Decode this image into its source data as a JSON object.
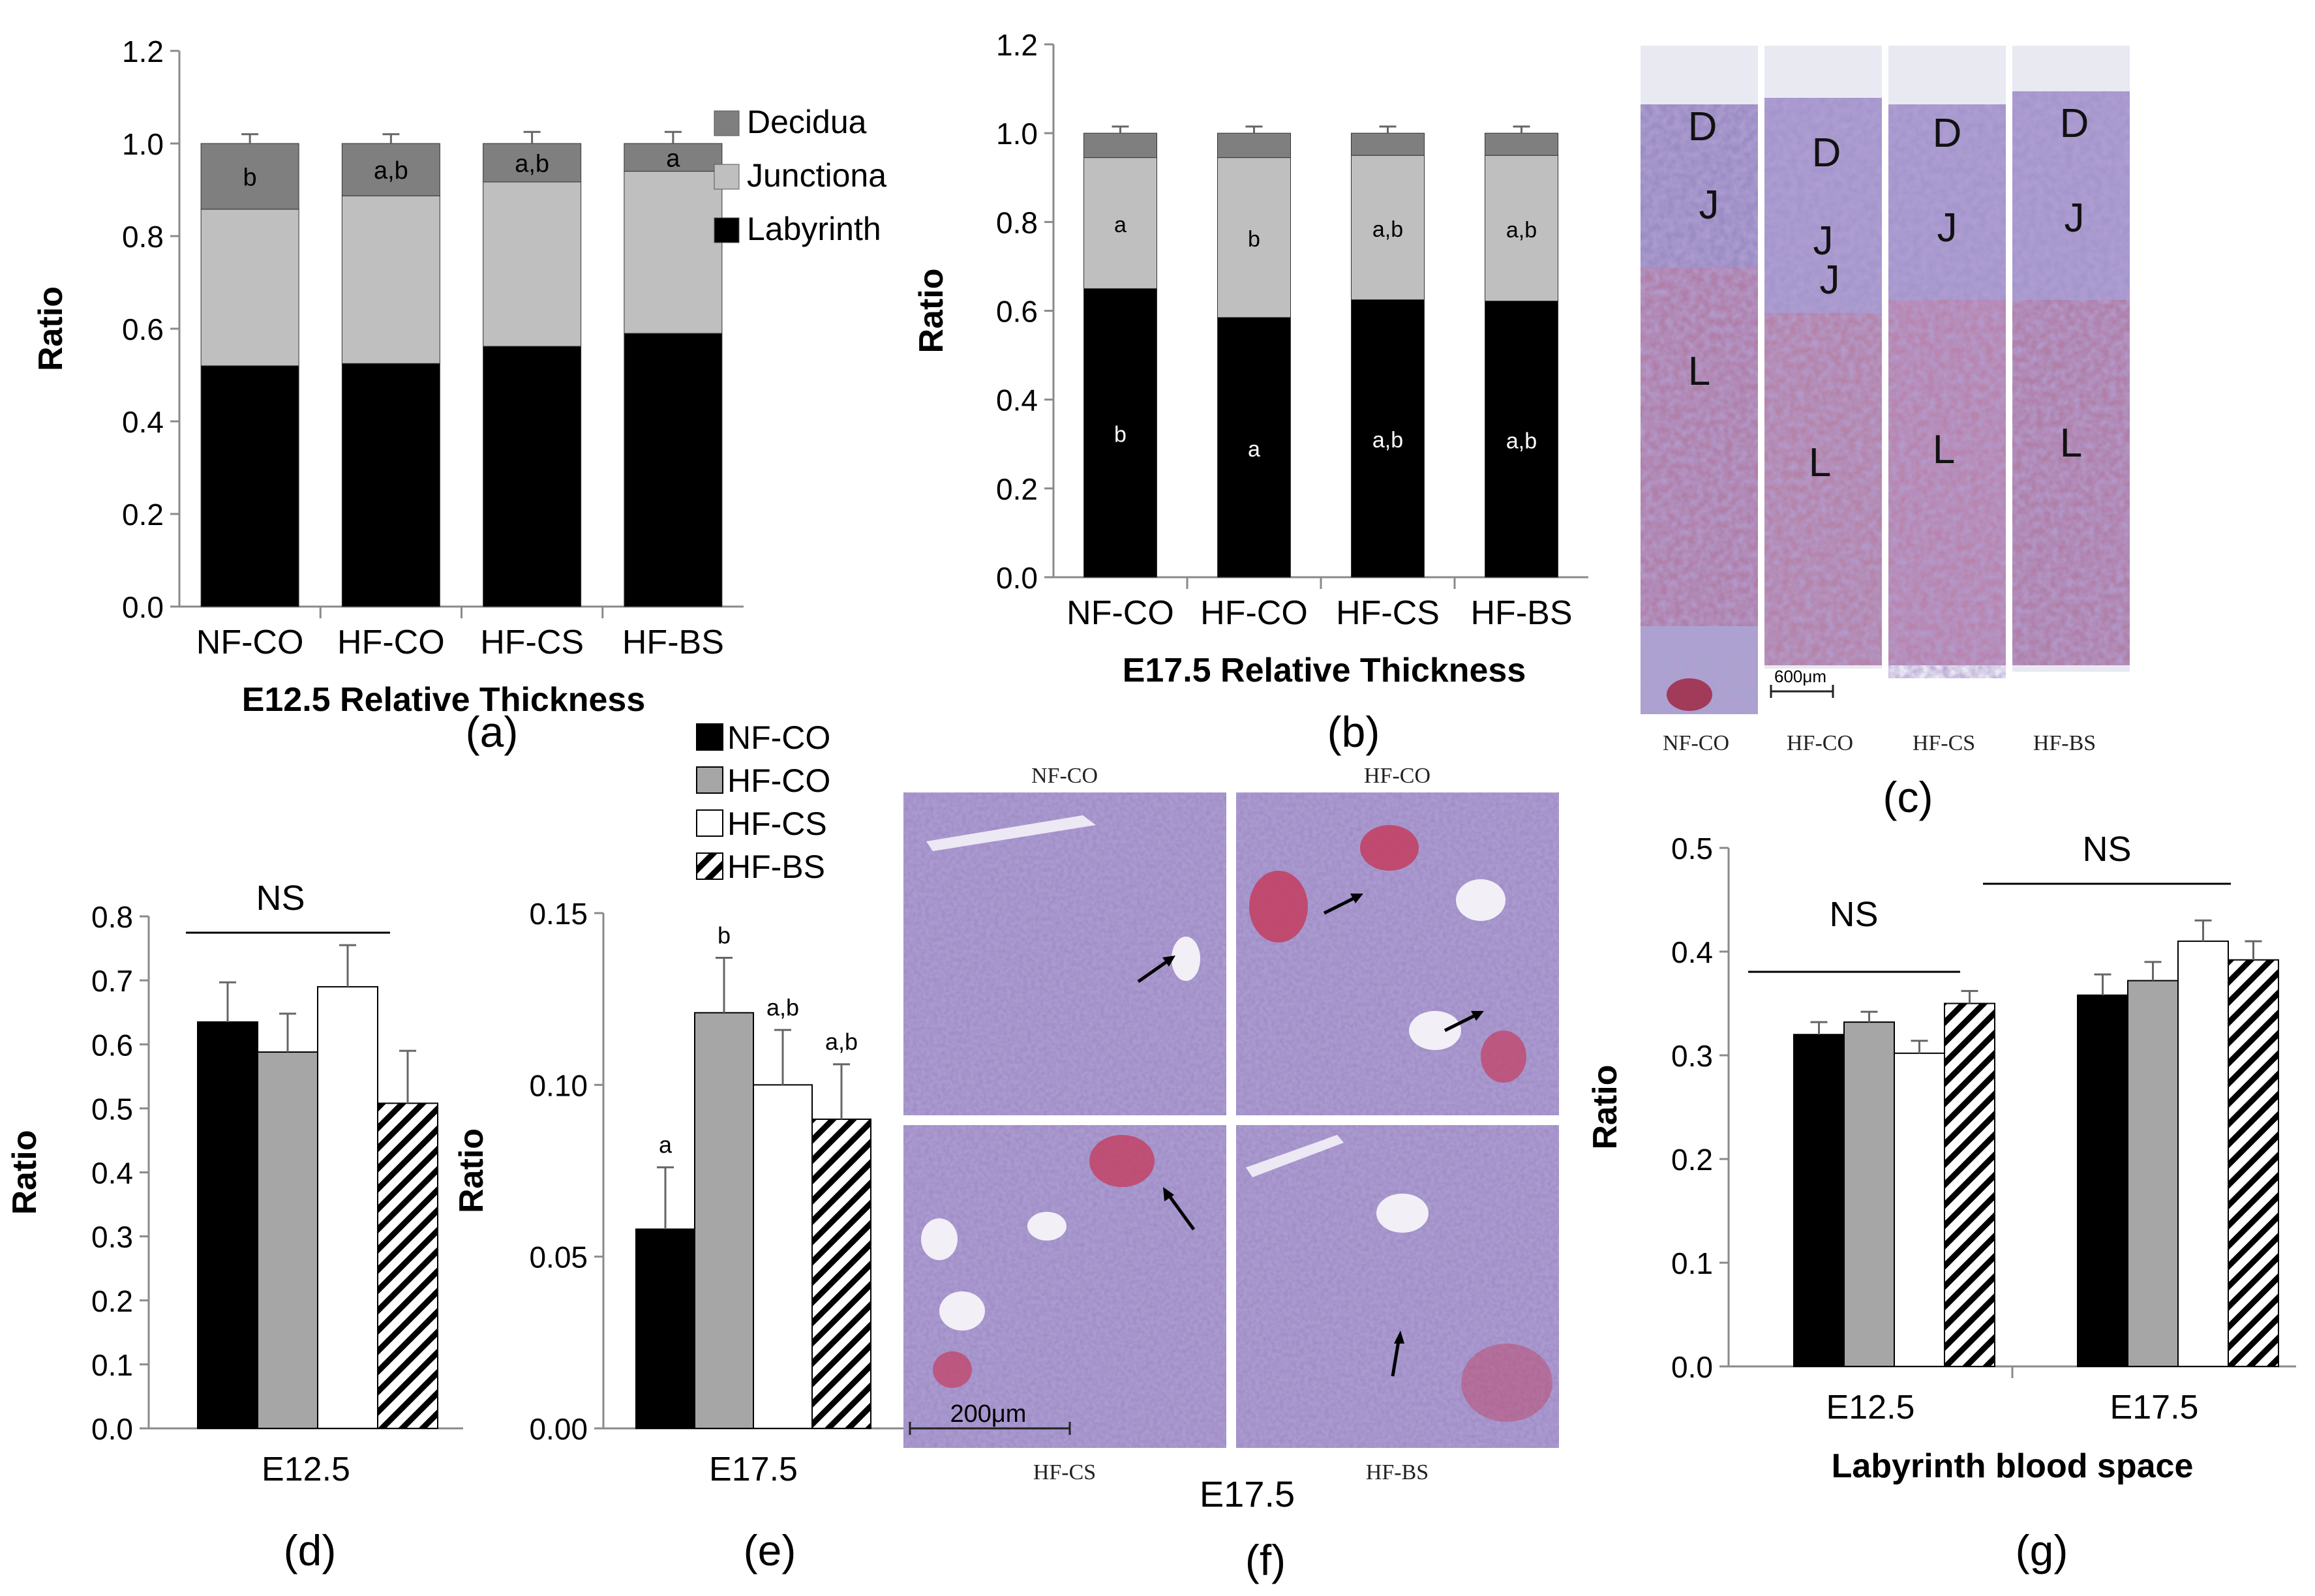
{
  "colors": {
    "decidua": "#7f7f7f",
    "junctional": "#bfbfbf",
    "labyrinth": "#000000",
    "NF-CO": "#000000",
    "HF-CO": "#a6a6a6",
    "HF-CS": "#ffffff",
    "HF-BS": "hatched"
  },
  "chart_data": [
    {
      "panel": "(a)",
      "type": "bar",
      "stacked": true,
      "title": "E12.5 Relative Thickness",
      "ylabel": "Ratio",
      "ylim": [
        0,
        1.2
      ],
      "yticks": [
        "0.0",
        "0.2",
        "0.4",
        "0.6",
        "0.8",
        "1.0",
        "1.2"
      ],
      "categories": [
        "NF-CO",
        "HF-CO",
        "HF-CS",
        "HF-BS"
      ],
      "legend": {
        "position": "right",
        "entries": [
          "Decidua",
          "Junctiona",
          "Labyrinth"
        ]
      },
      "series": [
        {
          "name": "Labyrinth",
          "values": [
            0.52,
            0.525,
            0.562,
            0.59
          ],
          "err": [
            0.02,
            0.02,
            0.025,
            0.025
          ],
          "labels": [
            "",
            "",
            "",
            ""
          ]
        },
        {
          "name": "Junctional",
          "values": [
            0.338,
            0.362,
            0.355,
            0.35
          ],
          "err": [
            0.015,
            0.015,
            0.02,
            0.015
          ],
          "labels": [
            "",
            "",
            "",
            ""
          ]
        },
        {
          "name": "Decidua",
          "values": [
            0.142,
            0.113,
            0.083,
            0.06
          ],
          "err": [
            0.02,
            0.02,
            0.025,
            0.025
          ],
          "labels": [
            "b",
            "a,b",
            "a,b",
            "a"
          ]
        }
      ]
    },
    {
      "panel": "(b)",
      "type": "bar",
      "stacked": true,
      "title": "E17.5 Relative Thickness",
      "ylabel": "Ratio",
      "ylim": [
        0,
        1.2
      ],
      "yticks": [
        "0.0",
        "0.2",
        "0.4",
        "0.6",
        "0.8",
        "1.0",
        "1.2"
      ],
      "categories": [
        "NF-CO",
        "HF-CO",
        "HF-CS",
        "HF-BS"
      ],
      "series": [
        {
          "name": "Labyrinth",
          "values": [
            0.65,
            0.585,
            0.625,
            0.622
          ],
          "err": [
            0.005,
            0.005,
            0.005,
            0.005
          ],
          "labels": [
            "b",
            "a",
            "a,b",
            "a,b"
          ]
        },
        {
          "name": "Junctional",
          "values": [
            0.295,
            0.36,
            0.325,
            0.328
          ],
          "err": [
            0.015,
            0.015,
            0.015,
            0.01
          ],
          "labels": [
            "a",
            "b",
            "a,b",
            "a,b"
          ]
        },
        {
          "name": "Decidua",
          "values": [
            0.055,
            0.055,
            0.05,
            0.05
          ],
          "err": [
            0.015,
            0.015,
            0.015,
            0.015
          ],
          "labels": [
            "",
            "",
            "",
            ""
          ]
        }
      ]
    },
    {
      "panel": "(d)",
      "type": "bar",
      "ylabel": "Ratio",
      "ylim": [
        0,
        0.8
      ],
      "yticks": [
        "0.0",
        "0.1",
        "0.2",
        "0.3",
        "0.4",
        "0.5",
        "0.6",
        "0.7",
        "0.8"
      ],
      "categories": [
        "E12.5"
      ],
      "annotation": "NS",
      "series": [
        {
          "name": "NF-CO",
          "values": [
            0.635
          ],
          "err": [
            0.062
          ],
          "labels": [
            ""
          ]
        },
        {
          "name": "HF-CO",
          "values": [
            0.588
          ],
          "err": [
            0.06
          ],
          "labels": [
            ""
          ]
        },
        {
          "name": "HF-CS",
          "values": [
            0.69
          ],
          "err": [
            0.065
          ],
          "labels": [
            ""
          ]
        },
        {
          "name": "HF-BS",
          "values": [
            0.508
          ],
          "err": [
            0.082
          ],
          "labels": [
            ""
          ]
        }
      ]
    },
    {
      "panel": "(e)",
      "type": "bar",
      "ylabel": "Ratio",
      "ylim": [
        0,
        0.15
      ],
      "yticks": [
        "0.00",
        "0.05",
        "0.10",
        "0.15"
      ],
      "categories": [
        "E17.5"
      ],
      "legend": {
        "position": "top",
        "entries": [
          "NF-CO",
          "HF-CO",
          "HF-CS",
          "HF-BS"
        ]
      },
      "series": [
        {
          "name": "NF-CO",
          "values": [
            0.058
          ],
          "err": [
            0.018
          ],
          "labels": [
            "a"
          ]
        },
        {
          "name": "HF-CO",
          "values": [
            0.121
          ],
          "err": [
            0.016
          ],
          "labels": [
            "b"
          ]
        },
        {
          "name": "HF-CS",
          "values": [
            0.1
          ],
          "err": [
            0.016
          ],
          "labels": [
            "a,b"
          ]
        },
        {
          "name": "HF-BS",
          "values": [
            0.09
          ],
          "err": [
            0.016
          ],
          "labels": [
            "a,b"
          ]
        }
      ]
    },
    {
      "panel": "(g)",
      "type": "bar",
      "title": "Labyrinth blood space",
      "ylabel": "Ratio",
      "ylim": [
        0,
        0.5
      ],
      "yticks": [
        "0.0",
        "0.1",
        "0.2",
        "0.3",
        "0.4",
        "0.5"
      ],
      "categories": [
        "E12.5",
        "E17.5"
      ],
      "annotation": [
        "NS",
        "NS"
      ],
      "series": [
        {
          "name": "NF-CO",
          "values": [
            0.32,
            0.358
          ],
          "err": [
            0.012,
            0.02
          ]
        },
        {
          "name": "HF-CO",
          "values": [
            0.332,
            0.372
          ],
          "err": [
            0.01,
            0.018
          ]
        },
        {
          "name": "HF-CS",
          "values": [
            0.302,
            0.41
          ],
          "err": [
            0.012,
            0.02
          ]
        },
        {
          "name": "HF-BS",
          "values": [
            0.35,
            0.392
          ],
          "err": [
            0.012,
            0.018
          ]
        }
      ]
    }
  ],
  "panels": {
    "a": "(a)",
    "b": "(b)",
    "c": "(c)",
    "d": "(d)",
    "e": "(e)",
    "f": "(f)",
    "g": "(g)"
  },
  "histo_c": {
    "labels": [
      "NF-CO",
      "HF-CO",
      "HF-CS",
      "HF-BS"
    ],
    "zones": [
      [
        "D",
        "J",
        "L"
      ],
      [
        "D",
        "J",
        "J",
        "L"
      ],
      [
        "D",
        "J",
        "L"
      ],
      [
        "D",
        "J",
        "L"
      ]
    ],
    "scale": "600μm"
  },
  "histo_f": {
    "labels": [
      "NF-CO",
      "HF-CO",
      "HF-CS",
      "HF-BS"
    ],
    "scale": "200μm",
    "caption": "E17.5"
  }
}
